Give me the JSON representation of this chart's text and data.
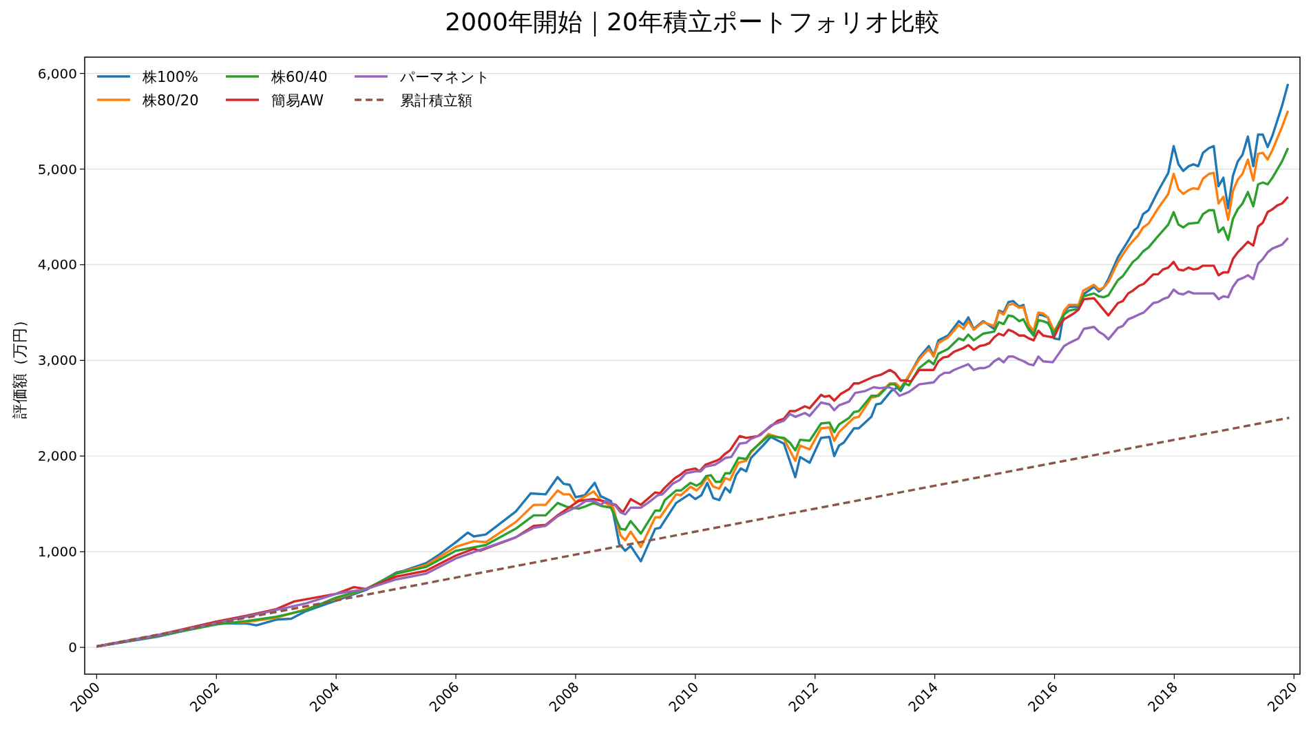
{
  "chart_data": {
    "type": "line",
    "title": "2000年開始｜20年積立ポートフォリオ比較",
    "ylabel": "評価額（万円）",
    "xlim": [
      1999.8,
      2020.1
    ],
    "ylim": [
      -280,
      6170
    ],
    "xticks": [
      2000,
      2002,
      2004,
      2006,
      2008,
      2010,
      2012,
      2014,
      2016,
      2018,
      2020
    ],
    "yticks": [
      {
        "value": 0,
        "label": "0"
      },
      {
        "value": 1000,
        "label": "1,000"
      },
      {
        "value": 2000,
        "label": "2,000"
      },
      {
        "value": 3000,
        "label": "3,000"
      },
      {
        "value": 4000,
        "label": "4,000"
      },
      {
        "value": 5000,
        "label": "5,000"
      },
      {
        "value": 6000,
        "label": "6,000"
      }
    ],
    "grid": "y",
    "legend": "top left",
    "series": [
      {
        "name": "株100%",
        "color": "#1f77b4",
        "x": [
          2000,
          2001,
          2002,
          2002.5,
          2002.67,
          2003,
          2003.25,
          2003.5,
          2004,
          2004.5,
          2005,
          2005.13,
          2005.5,
          2005.7,
          2006,
          2006.2,
          2006.3,
          2006.5,
          2007,
          2007.25,
          2007.5,
          2007.7,
          2007.8,
          2007.9,
          2008,
          2008.15,
          2008.32,
          2008.42,
          2008.59,
          2008.73,
          2008.83,
          2008.92,
          2009.09,
          2009.33,
          2009.41,
          2009.68,
          2009.9,
          2010,
          2010.1,
          2010.2,
          2010.3,
          2010.4,
          2010.5,
          2010.58,
          2010.68,
          2010.76,
          2010.85,
          2010.93,
          2011.13,
          2011.26,
          2011.48,
          2011.67,
          2011.75,
          2011.91,
          2012.1,
          2012.24,
          2012.32,
          2012.4,
          2012.48,
          2012.65,
          2012.73,
          2012.94,
          2013.02,
          2013.1,
          2013.27,
          2013.39,
          2013.43,
          2013.74,
          2013.9,
          2013.98,
          2014.06,
          2014.22,
          2014.4,
          2014.48,
          2014.56,
          2014.65,
          2014.81,
          2014.99,
          2015.07,
          2015.15,
          2015.23,
          2015.31,
          2015.41,
          2015.48,
          2015.57,
          2015.65,
          2015.73,
          2015.81,
          2015.89,
          2015.99,
          2016.08,
          2016.16,
          2016.24,
          2016.4,
          2016.48,
          2016.66,
          2016.74,
          2016.82,
          2016.9,
          2017.06,
          2017.23,
          2017.33,
          2017.39,
          2017.48,
          2017.57,
          2017.73,
          2017.9,
          2017.99,
          2018.07,
          2018.15,
          2018.24,
          2018.32,
          2018.4,
          2018.48,
          2018.58,
          2018.66,
          2018.74,
          2018.82,
          2018.9,
          2018.98,
          2019.06,
          2019.14,
          2019.23,
          2019.32,
          2019.4,
          2019.48,
          2019.56,
          2019.64,
          2019.8,
          2019.9
        ],
        "values": [
          10,
          110,
          250,
          250,
          230,
          290,
          300,
          380,
          490,
          600,
          780,
          800,
          880,
          960,
          1100,
          1200,
          1160,
          1180,
          1420,
          1610,
          1600,
          1780,
          1710,
          1700,
          1570,
          1590,
          1720,
          1580,
          1530,
          1080,
          1010,
          1060,
          900,
          1240,
          1250,
          1510,
          1600,
          1550,
          1590,
          1720,
          1560,
          1540,
          1670,
          1620,
          1800,
          1870,
          1840,
          1980,
          2110,
          2200,
          2130,
          1780,
          1990,
          1930,
          2190,
          2200,
          2000,
          2110,
          2140,
          2290,
          2290,
          2410,
          2540,
          2550,
          2680,
          2720,
          2680,
          3030,
          3150,
          3050,
          3210,
          3260,
          3410,
          3370,
          3450,
          3330,
          3410,
          3330,
          3520,
          3500,
          3610,
          3620,
          3560,
          3580,
          3360,
          3260,
          3480,
          3470,
          3450,
          3230,
          3220,
          3510,
          3560,
          3560,
          3690,
          3770,
          3720,
          3760,
          3850,
          4080,
          4250,
          4360,
          4390,
          4530,
          4570,
          4770,
          4960,
          5240,
          5050,
          4980,
          5030,
          5050,
          5030,
          5170,
          5220,
          5240,
          4820,
          4910,
          4590,
          4930,
          5080,
          5150,
          5340,
          5030,
          5360,
          5360,
          5230,
          5350,
          5660,
          5890
        ]
      },
      {
        "name": "株80/20",
        "color": "#ff7f0e",
        "x": [
          2002,
          2002.5,
          2003,
          2003.5,
          2004,
          2004.5,
          2005,
          2005.5,
          2006,
          2006.3,
          2006.5,
          2007,
          2007.3,
          2007.5,
          2007.7,
          2007.8,
          2007.9,
          2008,
          2008.3,
          2008.42,
          2008.63,
          2008.75,
          2008.83,
          2008.92,
          2009.09,
          2009.33,
          2009.41,
          2009.68,
          2009.76,
          2009.92,
          2010.02,
          2010.1,
          2010.2,
          2010.3,
          2010.4,
          2010.5,
          2010.58,
          2010.72,
          2010.85,
          2010.93,
          2011.22,
          2011.48,
          2011.67,
          2011.75,
          2011.91,
          2012.1,
          2012.24,
          2012.32,
          2012.4,
          2012.65,
          2012.73,
          2012.94,
          2013.02,
          2013.25,
          2013.35,
          2013.43,
          2013.74,
          2013.9,
          2013.98,
          2014.06,
          2014.22,
          2014.4,
          2014.48,
          2014.56,
          2014.65,
          2014.81,
          2014.99,
          2015.07,
          2015.15,
          2015.23,
          2015.31,
          2015.41,
          2015.48,
          2015.57,
          2015.65,
          2015.73,
          2015.81,
          2015.89,
          2015.99,
          2016.08,
          2016.16,
          2016.24,
          2016.4,
          2016.48,
          2016.66,
          2016.74,
          2016.82,
          2016.9,
          2017.06,
          2017.23,
          2017.31,
          2017.39,
          2017.48,
          2017.57,
          2017.73,
          2017.9,
          2017.99,
          2018.07,
          2018.15,
          2018.24,
          2018.32,
          2018.4,
          2018.48,
          2018.58,
          2018.66,
          2018.74,
          2018.82,
          2018.9,
          2018.98,
          2019.06,
          2019.14,
          2019.23,
          2019.32,
          2019.4,
          2019.48,
          2019.56,
          2019.64,
          2019.8,
          2019.9
        ],
        "values": [
          250,
          265,
          310,
          400,
          510,
          610,
          770,
          860,
          1050,
          1110,
          1100,
          1310,
          1490,
          1490,
          1640,
          1600,
          1600,
          1520,
          1630,
          1540,
          1460,
          1170,
          1120,
          1210,
          1050,
          1360,
          1360,
          1600,
          1590,
          1680,
          1640,
          1690,
          1780,
          1680,
          1660,
          1770,
          1750,
          1930,
          1950,
          2040,
          2230,
          2180,
          1950,
          2110,
          2070,
          2290,
          2300,
          2160,
          2250,
          2400,
          2410,
          2610,
          2620,
          2760,
          2760,
          2710,
          3010,
          3120,
          3040,
          3180,
          3240,
          3370,
          3330,
          3410,
          3320,
          3400,
          3360,
          3510,
          3480,
          3580,
          3590,
          3550,
          3560,
          3370,
          3310,
          3500,
          3490,
          3450,
          3310,
          3380,
          3520,
          3580,
          3580,
          3730,
          3790,
          3740,
          3760,
          3820,
          4030,
          4190,
          4250,
          4300,
          4390,
          4430,
          4590,
          4740,
          4950,
          4790,
          4740,
          4780,
          4800,
          4790,
          4900,
          4950,
          4960,
          4640,
          4710,
          4470,
          4770,
          4890,
          4950,
          5100,
          4880,
          5160,
          5170,
          5100,
          5200,
          5440,
          5610
        ]
      },
      {
        "name": "株60/40",
        "color": "#2ca02c",
        "x": [
          2000,
          2001,
          2002,
          2002.5,
          2003,
          2003.5,
          2004,
          2004.5,
          2005,
          2005.5,
          2006,
          2006.5,
          2007,
          2007.3,
          2007.5,
          2007.7,
          2007.85,
          2008.05,
          2008.15,
          2008.3,
          2008.42,
          2008.59,
          2008.75,
          2008.83,
          2008.92,
          2009.09,
          2009.33,
          2009.41,
          2009.49,
          2009.68,
          2009.76,
          2009.92,
          2010.02,
          2010.1,
          2010.18,
          2010.26,
          2010.34,
          2010.42,
          2010.5,
          2010.58,
          2010.72,
          2010.85,
          2010.93,
          2011.22,
          2011.48,
          2011.58,
          2011.67,
          2011.75,
          2011.91,
          2012.1,
          2012.24,
          2012.32,
          2012.4,
          2012.57,
          2012.65,
          2012.73,
          2012.94,
          2013.06,
          2013.25,
          2013.33,
          2013.41,
          2013.49,
          2013.57,
          2013.74,
          2013.9,
          2013.98,
          2014.06,
          2014.22,
          2014.4,
          2014.48,
          2014.56,
          2014.65,
          2014.81,
          2014.99,
          2015.07,
          2015.15,
          2015.23,
          2015.31,
          2015.41,
          2015.48,
          2015.57,
          2015.65,
          2015.73,
          2015.81,
          2015.89,
          2015.99,
          2016.08,
          2016.16,
          2016.24,
          2016.4,
          2016.48,
          2016.66,
          2016.74,
          2016.82,
          2016.9,
          2017.06,
          2017.14,
          2017.31,
          2017.39,
          2017.48,
          2017.57,
          2017.65,
          2017.73,
          2017.9,
          2017.99,
          2018.07,
          2018.15,
          2018.24,
          2018.4,
          2018.48,
          2018.58,
          2018.66,
          2018.74,
          2018.82,
          2018.9,
          2018.98,
          2019.06,
          2019.14,
          2019.23,
          2019.32,
          2019.4,
          2019.48,
          2019.56,
          2019.64,
          2019.8,
          2019.9
        ],
        "values": [
          10,
          115,
          240,
          275,
          320,
          390,
          520,
          610,
          770,
          840,
          1010,
          1070,
          1240,
          1380,
          1380,
          1510,
          1470,
          1450,
          1470,
          1510,
          1480,
          1460,
          1240,
          1230,
          1320,
          1190,
          1430,
          1430,
          1540,
          1640,
          1640,
          1720,
          1690,
          1720,
          1790,
          1800,
          1730,
          1730,
          1820,
          1820,
          1980,
          1970,
          2050,
          2210,
          2190,
          2140,
          2060,
          2170,
          2160,
          2340,
          2350,
          2250,
          2330,
          2400,
          2460,
          2470,
          2630,
          2630,
          2750,
          2750,
          2690,
          2760,
          2740,
          2920,
          3000,
          2960,
          3070,
          3120,
          3230,
          3210,
          3270,
          3210,
          3280,
          3300,
          3400,
          3380,
          3470,
          3460,
          3410,
          3430,
          3320,
          3260,
          3420,
          3410,
          3390,
          3280,
          3400,
          3480,
          3520,
          3540,
          3670,
          3700,
          3670,
          3660,
          3680,
          3840,
          3880,
          4030,
          4070,
          4140,
          4180,
          4240,
          4300,
          4420,
          4550,
          4420,
          4390,
          4430,
          4440,
          4530,
          4570,
          4570,
          4340,
          4390,
          4260,
          4480,
          4580,
          4640,
          4760,
          4610,
          4840,
          4860,
          4840,
          4910,
          5080,
          5220
        ]
      },
      {
        "name": "簡易AW",
        "color": "#d62728",
        "x": [
          2000,
          2001,
          2002,
          2002.5,
          2003,
          2003.3,
          2004,
          2004.3,
          2004.5,
          2005,
          2005.5,
          2006,
          2006.3,
          2006.4,
          2007,
          2007.3,
          2007.5,
          2007.7,
          2008.05,
          2008.3,
          2008.46,
          2008.67,
          2008.79,
          2008.92,
          2009.09,
          2009.33,
          2009.41,
          2009.49,
          2009.66,
          2009.74,
          2009.84,
          2010,
          2010.07,
          2010.17,
          2010.35,
          2010.41,
          2010.49,
          2010.58,
          2010.74,
          2010.85,
          2011.05,
          2011.26,
          2011.38,
          2011.48,
          2011.58,
          2011.67,
          2011.83,
          2011.91,
          2012.1,
          2012.16,
          2012.24,
          2012.32,
          2012.43,
          2012.57,
          2012.65,
          2012.73,
          2012.98,
          2013.1,
          2013.25,
          2013.33,
          2013.43,
          2013.51,
          2013.6,
          2013.74,
          2013.98,
          2014.06,
          2014.14,
          2014.22,
          2014.32,
          2014.48,
          2014.56,
          2014.65,
          2014.75,
          2014.83,
          2014.91,
          2014.99,
          2015.07,
          2015.15,
          2015.23,
          2015.31,
          2015.41,
          2015.49,
          2015.57,
          2015.65,
          2015.73,
          2015.81,
          2015.89,
          2015.99,
          2016.08,
          2016.16,
          2016.24,
          2016.32,
          2016.4,
          2016.49,
          2016.66,
          2016.9,
          2017.06,
          2017.14,
          2017.23,
          2017.31,
          2017.41,
          2017.49,
          2017.65,
          2017.73,
          2017.81,
          2017.9,
          2017.99,
          2018.07,
          2018.15,
          2018.24,
          2018.32,
          2018.4,
          2018.48,
          2018.58,
          2018.66,
          2018.74,
          2018.82,
          2018.9,
          2018.98,
          2019.06,
          2019.14,
          2019.23,
          2019.32,
          2019.4,
          2019.48,
          2019.56,
          2019.64,
          2019.72,
          2019.8,
          2019.9
        ],
        "values": [
          10,
          125,
          270,
          330,
          400,
          480,
          560,
          630,
          610,
          740,
          800,
          960,
          1030,
          1010,
          1150,
          1270,
          1280,
          1380,
          1530,
          1550,
          1530,
          1490,
          1410,
          1550,
          1490,
          1620,
          1610,
          1670,
          1770,
          1800,
          1850,
          1870,
          1840,
          1910,
          1950,
          1970,
          2020,
          2060,
          2210,
          2190,
          2210,
          2310,
          2370,
          2390,
          2470,
          2470,
          2520,
          2500,
          2640,
          2620,
          2630,
          2580,
          2650,
          2700,
          2760,
          2760,
          2830,
          2850,
          2900,
          2870,
          2790,
          2790,
          2780,
          2900,
          2900,
          2990,
          3030,
          3040,
          3090,
          3130,
          3160,
          3110,
          3150,
          3160,
          3180,
          3240,
          3280,
          3260,
          3320,
          3300,
          3260,
          3260,
          3230,
          3210,
          3310,
          3260,
          3250,
          3240,
          3360,
          3430,
          3460,
          3490,
          3530,
          3640,
          3650,
          3470,
          3600,
          3620,
          3700,
          3730,
          3780,
          3800,
          3900,
          3900,
          3950,
          3970,
          4030,
          3950,
          3940,
          3970,
          3950,
          3960,
          3990,
          3990,
          3990,
          3890,
          3920,
          3920,
          4060,
          4130,
          4180,
          4240,
          4200,
          4400,
          4440,
          4550,
          4580,
          4620,
          4640,
          4710
        ]
      },
      {
        "name": "パーマネント",
        "color": "#9467bd",
        "x": [
          2000,
          2001,
          2002,
          2002.5,
          2003,
          2003.5,
          2004,
          2004.5,
          2005,
          2005.5,
          2006,
          2006.5,
          2007,
          2007.3,
          2007.5,
          2007.7,
          2008.05,
          2008.17,
          2008.3,
          2008.42,
          2008.5,
          2008.67,
          2008.75,
          2008.83,
          2008.92,
          2009.09,
          2009.25,
          2009.37,
          2009.45,
          2009.62,
          2009.74,
          2009.84,
          2010,
          2010.09,
          2010.17,
          2010.33,
          2010.41,
          2010.5,
          2010.6,
          2010.74,
          2010.85,
          2010.93,
          2011.09,
          2011.26,
          2011.48,
          2011.58,
          2011.67,
          2011.83,
          2011.91,
          2012.1,
          2012.24,
          2012.32,
          2012.4,
          2012.57,
          2012.67,
          2012.84,
          2012.98,
          2013.08,
          2013.23,
          2013.31,
          2013.41,
          2013.57,
          2013.74,
          2013.98,
          2014.08,
          2014.16,
          2014.24,
          2014.32,
          2014.56,
          2014.65,
          2014.75,
          2014.83,
          2014.91,
          2014.99,
          2015.07,
          2015.15,
          2015.23,
          2015.31,
          2015.41,
          2015.49,
          2015.57,
          2015.65,
          2015.73,
          2015.81,
          2015.97,
          2016.16,
          2016.24,
          2016.4,
          2016.49,
          2016.66,
          2016.74,
          2016.82,
          2016.9,
          2017.06,
          2017.14,
          2017.23,
          2017.31,
          2017.41,
          2017.49,
          2017.65,
          2017.73,
          2017.81,
          2017.9,
          2017.99,
          2018.07,
          2018.15,
          2018.24,
          2018.32,
          2018.48,
          2018.58,
          2018.66,
          2018.74,
          2018.82,
          2018.9,
          2018.98,
          2019.06,
          2019.14,
          2019.23,
          2019.32,
          2019.4,
          2019.48,
          2019.56,
          2019.64,
          2019.72,
          2019.8,
          2019.9
        ],
        "values": [
          10,
          125,
          255,
          320,
          390,
          460,
          560,
          610,
          710,
          770,
          930,
          1040,
          1150,
          1250,
          1270,
          1370,
          1480,
          1530,
          1530,
          1490,
          1530,
          1480,
          1410,
          1390,
          1460,
          1460,
          1530,
          1590,
          1600,
          1710,
          1750,
          1820,
          1840,
          1840,
          1890,
          1910,
          1940,
          1980,
          1990,
          2130,
          2140,
          2180,
          2220,
          2320,
          2370,
          2440,
          2410,
          2450,
          2420,
          2560,
          2540,
          2480,
          2530,
          2570,
          2660,
          2680,
          2720,
          2710,
          2720,
          2700,
          2630,
          2670,
          2750,
          2770,
          2840,
          2870,
          2870,
          2900,
          2960,
          2900,
          2920,
          2920,
          2940,
          2990,
          3020,
          2980,
          3040,
          3040,
          3010,
          2990,
          2960,
          2950,
          3040,
          2990,
          2980,
          3150,
          3180,
          3230,
          3330,
          3350,
          3300,
          3270,
          3220,
          3340,
          3360,
          3430,
          3450,
          3480,
          3500,
          3600,
          3610,
          3640,
          3660,
          3740,
          3700,
          3690,
          3720,
          3700,
          3700,
          3700,
          3700,
          3640,
          3670,
          3660,
          3770,
          3840,
          3860,
          3890,
          3850,
          4010,
          4060,
          4130,
          4170,
          4190,
          4210,
          4280
        ]
      },
      {
        "name": "累計積立額",
        "color": "#8c564b",
        "line_style": "dashed",
        "x": [
          2000,
          2019.92
        ],
        "values": [
          10,
          2400
        ]
      }
    ]
  }
}
